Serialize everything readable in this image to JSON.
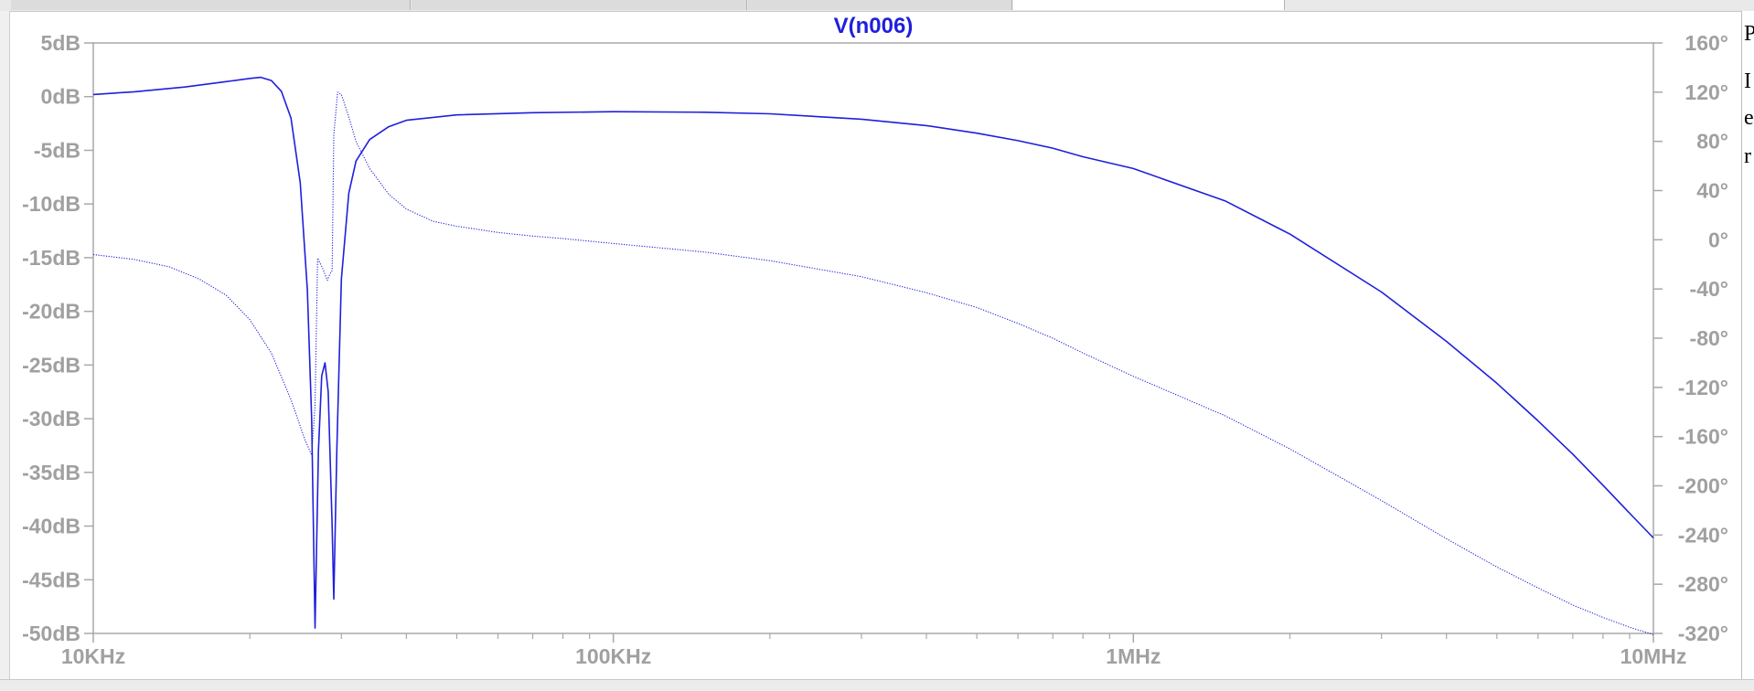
{
  "window": {
    "tabs": [
      "",
      "",
      "",
      ""
    ],
    "side_text": [
      "P",
      "I",
      "e",
      "r"
    ]
  },
  "chart_data": {
    "type": "line",
    "title": "V(n006)",
    "xscale": "log",
    "xlim": [
      10000,
      10000000
    ],
    "x_ticks": [
      10000,
      100000,
      1000000,
      10000000
    ],
    "x_tick_labels": [
      "10KHz",
      "100KHz",
      "1MHz",
      "10MHz"
    ],
    "y_left": {
      "lim": [
        -50,
        5
      ],
      "ticks": [
        5,
        0,
        -5,
        -10,
        -15,
        -20,
        -25,
        -30,
        -35,
        -40,
        -45,
        -50
      ],
      "tick_labels": [
        "5dB",
        "0dB",
        "-5dB",
        "-10dB",
        "-15dB",
        "-20dB",
        "-25dB",
        "-30dB",
        "-35dB",
        "-40dB",
        "-45dB",
        "-50dB"
      ]
    },
    "y_right": {
      "lim": [
        -320,
        160
      ],
      "ticks": [
        160,
        120,
        80,
        40,
        0,
        -40,
        -80,
        -120,
        -160,
        -200,
        -240,
        -280,
        -320
      ],
      "tick_labels": [
        "160°",
        "120°",
        "80°",
        "40°",
        "0°",
        "-40°",
        "-80°",
        "-120°",
        "-160°",
        "-200°",
        "-240°",
        "-280°",
        "-320°"
      ]
    },
    "grid": false,
    "color": "#1f1fdc",
    "series": [
      {
        "axis": "left",
        "style": "solid",
        "points": [
          [
            10000,
            0.2
          ],
          [
            12000,
            0.45
          ],
          [
            15000,
            0.9
          ],
          [
            18000,
            1.4
          ],
          [
            20000,
            1.7
          ],
          [
            21000,
            1.8
          ],
          [
            22000,
            1.5
          ],
          [
            23000,
            0.5
          ],
          [
            24000,
            -2
          ],
          [
            25000,
            -8
          ],
          [
            25800,
            -18
          ],
          [
            26300,
            -30
          ],
          [
            26700,
            -49.5
          ],
          [
            27100,
            -33
          ],
          [
            27500,
            -26
          ],
          [
            27900,
            -24.8
          ],
          [
            28300,
            -27.5
          ],
          [
            28800,
            -40
          ],
          [
            29000,
            -46.8
          ],
          [
            29400,
            -33
          ],
          [
            30000,
            -17
          ],
          [
            31000,
            -9
          ],
          [
            32000,
            -6
          ],
          [
            34000,
            -4
          ],
          [
            37000,
            -2.8
          ],
          [
            40000,
            -2.2
          ],
          [
            50000,
            -1.7
          ],
          [
            70000,
            -1.5
          ],
          [
            100000,
            -1.4
          ],
          [
            150000,
            -1.45
          ],
          [
            200000,
            -1.6
          ],
          [
            300000,
            -2.1
          ],
          [
            400000,
            -2.7
          ],
          [
            500000,
            -3.4
          ],
          [
            600000,
            -4.1
          ],
          [
            700000,
            -4.8
          ],
          [
            800000,
            -5.6
          ],
          [
            1000000,
            -6.7
          ],
          [
            1500000,
            -9.7
          ],
          [
            2000000,
            -12.8
          ],
          [
            3000000,
            -18.2
          ],
          [
            4000000,
            -22.8
          ],
          [
            5000000,
            -26.7
          ],
          [
            6000000,
            -30.2
          ],
          [
            7000000,
            -33.3
          ],
          [
            8000000,
            -36.2
          ],
          [
            9000000,
            -38.8
          ],
          [
            10000000,
            -41.1
          ]
        ]
      },
      {
        "axis": "right",
        "style": "dotted",
        "points": [
          [
            10000,
            -12
          ],
          [
            12000,
            -16
          ],
          [
            14000,
            -22
          ],
          [
            16000,
            -32
          ],
          [
            18000,
            -45
          ],
          [
            20000,
            -65
          ],
          [
            22000,
            -92
          ],
          [
            24000,
            -130
          ],
          [
            25500,
            -162
          ],
          [
            26300,
            -175
          ],
          [
            26700,
            -135
          ],
          [
            27000,
            -15
          ],
          [
            27600,
            -23
          ],
          [
            28200,
            -33
          ],
          [
            28500,
            -28
          ],
          [
            28800,
            -25
          ],
          [
            29000,
            85
          ],
          [
            29500,
            120
          ],
          [
            30000,
            118
          ],
          [
            31000,
            100
          ],
          [
            32000,
            80
          ],
          [
            34000,
            58
          ],
          [
            37000,
            37
          ],
          [
            40000,
            25
          ],
          [
            45000,
            15
          ],
          [
            50000,
            11
          ],
          [
            60000,
            6
          ],
          [
            70000,
            3
          ],
          [
            80000,
            1
          ],
          [
            100000,
            -3
          ],
          [
            150000,
            -10
          ],
          [
            200000,
            -17
          ],
          [
            300000,
            -30
          ],
          [
            400000,
            -43
          ],
          [
            500000,
            -55
          ],
          [
            600000,
            -68
          ],
          [
            700000,
            -80
          ],
          [
            800000,
            -92
          ],
          [
            1000000,
            -111
          ],
          [
            1500000,
            -143
          ],
          [
            2000000,
            -170
          ],
          [
            3000000,
            -212
          ],
          [
            4000000,
            -243
          ],
          [
            5000000,
            -266
          ],
          [
            6000000,
            -283
          ],
          [
            7000000,
            -297
          ],
          [
            8000000,
            -307
          ],
          [
            9000000,
            -315
          ],
          [
            10000000,
            -321
          ]
        ]
      }
    ]
  }
}
